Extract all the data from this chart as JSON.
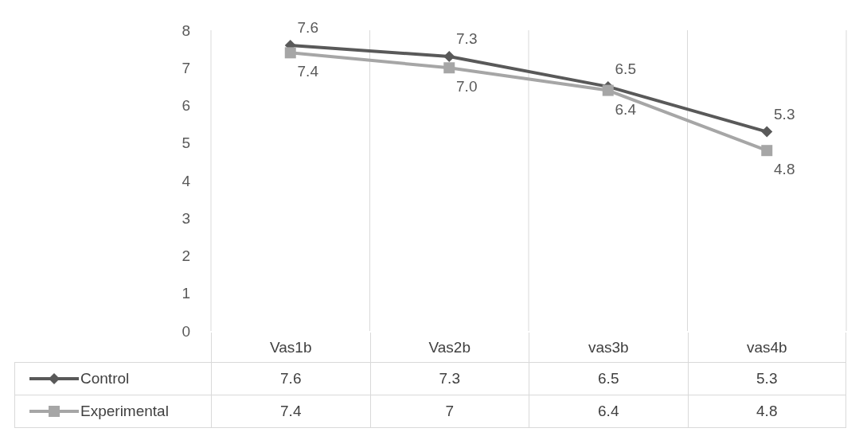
{
  "chart_data": {
    "type": "line",
    "categories": [
      "Vas1b",
      "Vas2b",
      "vas3b",
      "vas4b"
    ],
    "series": [
      {
        "name": "Control",
        "color": "#595959",
        "marker": "diamond",
        "values": [
          7.6,
          7.3,
          6.5,
          5.3
        ]
      },
      {
        "name": "Experimental",
        "color": "#a6a6a6",
        "marker": "square",
        "values": [
          7.4,
          7.0,
          6.4,
          4.8
        ]
      }
    ],
    "annotations": [
      {
        "text": "7.6",
        "x": "Vas1b",
        "y": 7.6
      },
      {
        "text": "7.3",
        "x": "Vas2b",
        "y": 7.3
      },
      {
        "text": "6.5",
        "x": "vas3b",
        "y": 6.5
      },
      {
        "text": "5.3",
        "x": "vas4b",
        "y": 5.3
      },
      {
        "text": "7.4",
        "x": "Vas1b",
        "y": 7.4
      },
      {
        "text": "7.0",
        "x": "Vas2b",
        "y": 7.0
      },
      {
        "text": "6.4",
        "x": "vas3b",
        "y": 6.4
      },
      {
        "text": "4.8",
        "x": "vas4b",
        "y": 4.8
      }
    ],
    "ylim": [
      0,
      8
    ],
    "yticks": [
      0,
      1,
      2,
      3,
      4,
      5,
      6,
      7,
      8
    ],
    "grid": "x",
    "legend": "bottom",
    "data_labels": true
  }
}
